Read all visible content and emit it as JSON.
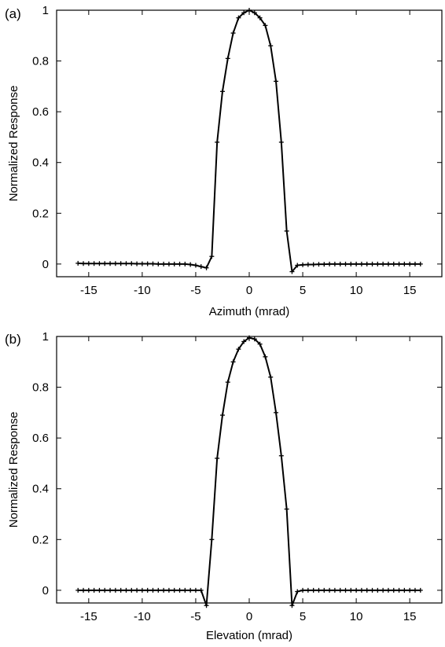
{
  "chart_data": [
    {
      "type": "line",
      "panel_label": "(a)",
      "xlabel": "Azimuth (mrad)",
      "ylabel": "Normalized Response",
      "xlim": [
        -18,
        18
      ],
      "ylim": [
        -0.05,
        1.0
      ],
      "xticks": [
        -15,
        -10,
        -5,
        0,
        5,
        10,
        15
      ],
      "yticks": [
        0,
        0.2,
        0.4,
        0.6,
        0.8,
        1
      ],
      "xtick_labels": [
        "-15",
        "-10",
        "-5",
        "0",
        "5",
        "10",
        "15"
      ],
      "ytick_labels": [
        "0",
        "0.2",
        "0.4",
        "0.6",
        "0.8",
        "1"
      ],
      "grid": false,
      "series": [
        {
          "x": [
            -16,
            -15.5,
            -15,
            -14.5,
            -14,
            -13.5,
            -13,
            -12.5,
            -12,
            -11.5,
            -11,
            -10.5,
            -10,
            -9.5,
            -9,
            -8.5,
            -8,
            -7.5,
            -7,
            -6.5,
            -6,
            -5.5,
            -5,
            -4.5,
            -4,
            -3.5,
            -3,
            -2.5,
            -2,
            -1.5,
            -1,
            -0.5,
            0,
            0.5,
            1,
            1.5,
            2,
            2.5,
            3,
            3.5,
            4,
            4.5,
            5,
            5.5,
            6,
            6.5,
            7,
            7.5,
            8,
            8.5,
            9,
            9.5,
            10,
            10.5,
            11,
            11.5,
            12,
            12.5,
            13,
            13.5,
            14,
            14.5,
            15,
            15.5,
            16
          ],
          "y": [
            0.003,
            0.002,
            0.002,
            0.002,
            0.002,
            0.002,
            0.002,
            0.002,
            0.002,
            0.002,
            0.002,
            0.001,
            0.001,
            0.001,
            0.001,
            0.0,
            0.0,
            0.0,
            0.0,
            0.0,
            0.0,
            -0.002,
            -0.005,
            -0.01,
            -0.015,
            0.03,
            0.48,
            0.68,
            0.81,
            0.91,
            0.97,
            0.99,
            1.0,
            0.99,
            0.97,
            0.94,
            0.86,
            0.72,
            0.48,
            0.13,
            -0.03,
            -0.005,
            -0.003,
            -0.002,
            -0.002,
            -0.001,
            -0.001,
            0.0,
            0.0,
            0.0,
            0.0,
            0.0,
            0.0,
            0.0,
            0.0,
            0.0,
            0.0,
            0.0,
            0.0,
            0.0,
            0.0,
            0.0,
            0.0,
            0.0,
            0.0
          ]
        }
      ]
    },
    {
      "type": "line",
      "panel_label": "(b)",
      "xlabel": "Elevation (mrad)",
      "ylabel": "Normalized Response",
      "xlim": [
        -18,
        18
      ],
      "ylim": [
        -0.05,
        1.0
      ],
      "xticks": [
        -15,
        -10,
        -5,
        0,
        5,
        10,
        15
      ],
      "yticks": [
        0,
        0.2,
        0.4,
        0.6,
        0.8,
        1
      ],
      "xtick_labels": [
        "-15",
        "-10",
        "-5",
        "0",
        "5",
        "10",
        "15"
      ],
      "ytick_labels": [
        "0",
        "0.2",
        "0.4",
        "0.6",
        "0.8",
        "1"
      ],
      "grid": false,
      "series": [
        {
          "x": [
            -16,
            -15.5,
            -15,
            -14.5,
            -14,
            -13.5,
            -13,
            -12.5,
            -12,
            -11.5,
            -11,
            -10.5,
            -10,
            -9.5,
            -9,
            -8.5,
            -8,
            -7.5,
            -7,
            -6.5,
            -6,
            -5.5,
            -5,
            -4.5,
            -4,
            -3.5,
            -3,
            -2.5,
            -2,
            -1.5,
            -1,
            -0.5,
            0,
            0.5,
            1,
            1.5,
            2,
            2.5,
            3,
            3.5,
            4,
            4.5,
            5,
            5.5,
            6,
            6.5,
            7,
            7.5,
            8,
            8.5,
            9,
            9.5,
            10,
            10.5,
            11,
            11.5,
            12,
            12.5,
            13,
            13.5,
            14,
            14.5,
            15,
            15.5,
            16
          ],
          "y": [
            0.0,
            0.0,
            0.0,
            0.0,
            0.0,
            0.0,
            0.0,
            0.0,
            0.0,
            0.0,
            0.0,
            0.0,
            0.0,
            0.0,
            0.0,
            0.0,
            0.0,
            0.0,
            0.0,
            0.0,
            0.0,
            0.0,
            0.0,
            0.0,
            -0.06,
            0.2,
            0.52,
            0.69,
            0.82,
            0.9,
            0.95,
            0.98,
            0.995,
            0.99,
            0.97,
            0.92,
            0.84,
            0.7,
            0.53,
            0.32,
            -0.06,
            -0.005,
            0.0,
            0.0,
            0.0,
            0.0,
            0.0,
            0.0,
            0.0,
            0.0,
            0.0,
            0.0,
            0.0,
            0.0,
            0.0,
            0.0,
            0.0,
            0.0,
            0.0,
            0.0,
            0.0,
            0.0,
            0.0,
            0.0,
            0.0
          ]
        }
      ]
    }
  ]
}
